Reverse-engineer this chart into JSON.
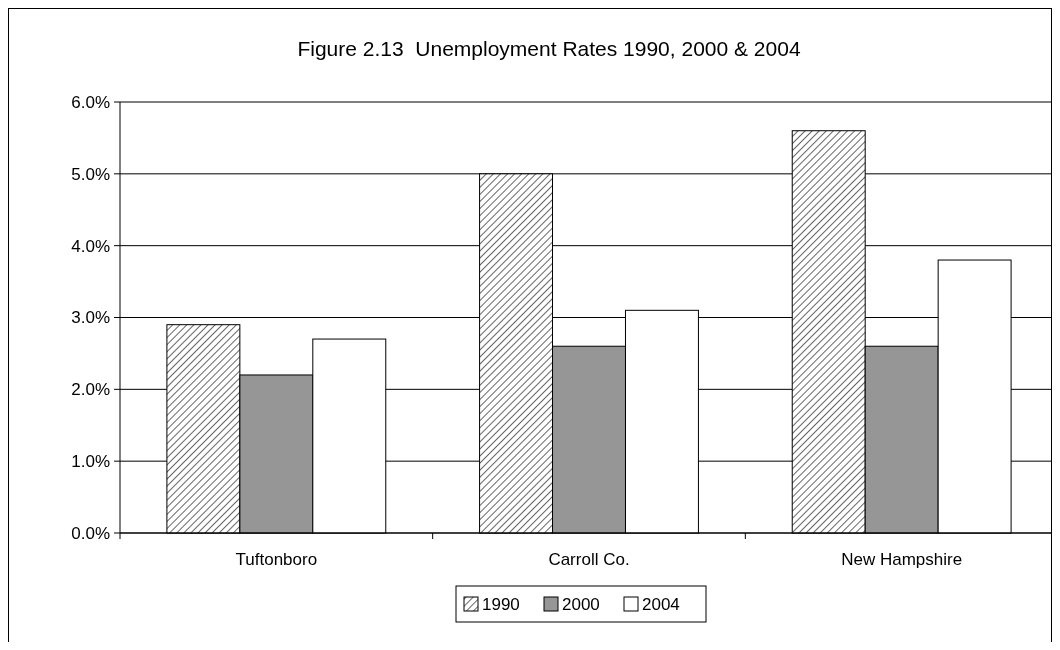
{
  "chart_data": {
    "type": "bar",
    "title": "Figure 2.13  Unemployment Rates 1990, 2000 & 2004",
    "categories": [
      "Tuftonboro",
      "Carroll Co.",
      "New Hampshire"
    ],
    "series": [
      {
        "name": "1990",
        "color": "#000000",
        "values": [
          2.9,
          5.0,
          5.6
        ]
      },
      {
        "name": "2000",
        "color": "#969696",
        "values": [
          2.2,
          2.6,
          2.6
        ]
      },
      {
        "name": "2004",
        "color": "#ffffff",
        "values": [
          2.7,
          3.1,
          3.8
        ]
      }
    ],
    "ylim": [
      0,
      6
    ],
    "yticks": [
      {
        "value": 0,
        "label": "0.0%"
      },
      {
        "value": 1,
        "label": "1.0%"
      },
      {
        "value": 2,
        "label": "2.0%"
      },
      {
        "value": 3,
        "label": "3.0%"
      },
      {
        "value": 4,
        "label": "4.0%"
      },
      {
        "value": 5,
        "label": "5.0%"
      },
      {
        "value": 6,
        "label": "6.0%"
      }
    ],
    "grid": "y",
    "legend": "bottom"
  }
}
